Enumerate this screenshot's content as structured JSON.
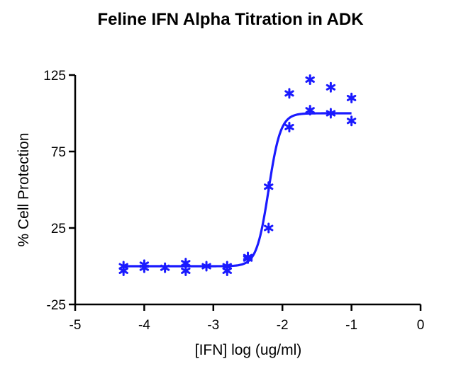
{
  "chart_data": {
    "type": "scatter",
    "title": "Feline IFN Alpha Titration in ADK",
    "xlabel": "[IFN] log (ug/ml)",
    "ylabel": "% Cell Protection",
    "xlim": [
      -5,
      0
    ],
    "ylim": [
      -25,
      125
    ],
    "xticks": [
      -5,
      -4,
      -3,
      -2,
      -1,
      0
    ],
    "yticks": [
      -25,
      25,
      75,
      125
    ],
    "xtick_labels": [
      "-5",
      "-4",
      "-3",
      "-2",
      "-1",
      "0"
    ],
    "ytick_labels": [
      "-25",
      "25",
      "75",
      "125"
    ],
    "grid": false,
    "marker": "asterisk",
    "color": "#1a1aff",
    "points": [
      {
        "x": -4.3,
        "y": 0
      },
      {
        "x": -4.3,
        "y": -3
      },
      {
        "x": -4.0,
        "y": 1
      },
      {
        "x": -4.0,
        "y": -1
      },
      {
        "x": -3.7,
        "y": -1
      },
      {
        "x": -3.4,
        "y": 2
      },
      {
        "x": -3.4,
        "y": -3
      },
      {
        "x": -3.1,
        "y": 0
      },
      {
        "x": -2.8,
        "y": -3
      },
      {
        "x": -2.8,
        "y": 0
      },
      {
        "x": -2.5,
        "y": 6
      },
      {
        "x": -2.5,
        "y": 5
      },
      {
        "x": -2.2,
        "y": 52
      },
      {
        "x": -2.2,
        "y": 25
      },
      {
        "x": -1.9,
        "y": 113
      },
      {
        "x": -1.9,
        "y": 91
      },
      {
        "x": -1.6,
        "y": 122
      },
      {
        "x": -1.6,
        "y": 102
      },
      {
        "x": -1.3,
        "y": 117
      },
      {
        "x": -1.3,
        "y": 100
      },
      {
        "x": -1.0,
        "y": 110
      },
      {
        "x": -1.0,
        "y": 95
      }
    ],
    "fit": {
      "model": "sigmoidal dose-response",
      "bottom": 0,
      "top": 100,
      "log_ec50": -2.2,
      "hill_slope": 5,
      "x_range": [
        -4.3,
        -1.0
      ]
    }
  }
}
